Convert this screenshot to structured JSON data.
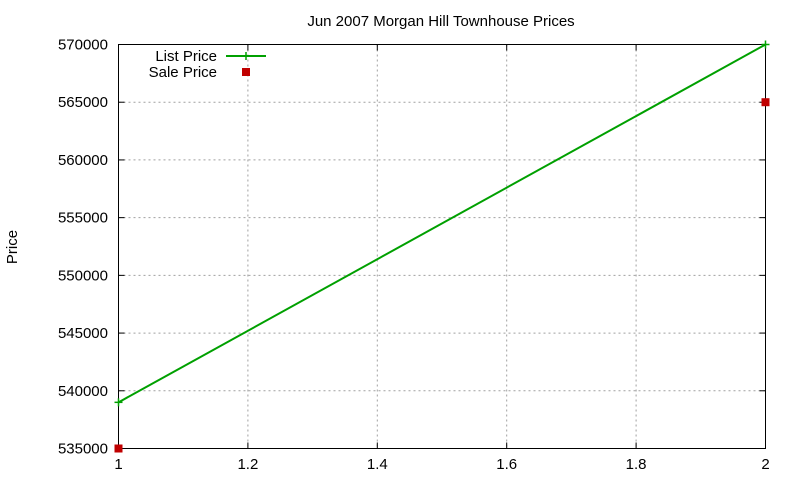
{
  "chart_data": {
    "type": "line",
    "title": "Jun 2007 Morgan Hill Townhouse Prices",
    "xlabel": "",
    "ylabel": "Price",
    "xlim": [
      1,
      2
    ],
    "ylim": [
      535000,
      570000
    ],
    "x_ticks": [
      "1",
      "1.2",
      "1.4",
      "1.6",
      "1.8",
      "2"
    ],
    "y_ticks": [
      "535000",
      "540000",
      "545000",
      "550000",
      "555000",
      "560000",
      "565000",
      "570000"
    ],
    "grid": true,
    "legend_position": "top-left",
    "series": [
      {
        "name": "List Price",
        "style": "line-with-plus-markers",
        "color": "#00a000",
        "x": [
          1,
          2
        ],
        "y": [
          539000,
          570000
        ]
      },
      {
        "name": "Sale Price",
        "style": "square-points",
        "color": "#c00000",
        "x": [
          1,
          2
        ],
        "y": [
          535000,
          565000
        ]
      }
    ]
  }
}
